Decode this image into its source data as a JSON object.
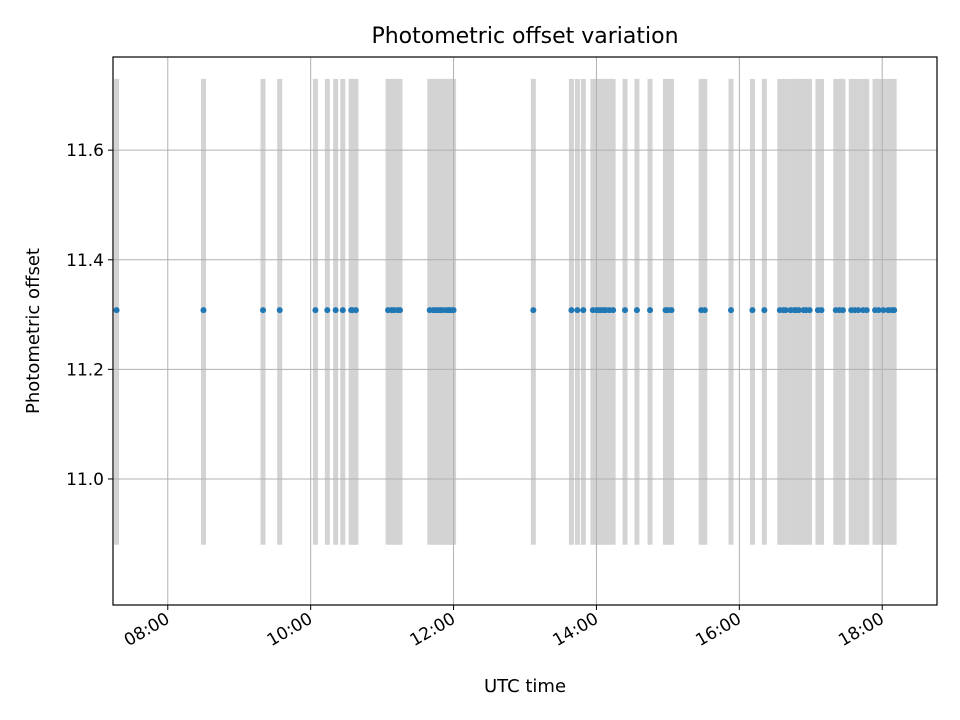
{
  "chart_data": {
    "type": "scatter",
    "title": "Photometric offset variation",
    "xlabel": "UTC time",
    "ylabel": "Photometric offset",
    "x_axis_type": "time",
    "xlim": [
      "07:14",
      "18:46"
    ],
    "ylim": [
      10.77,
      11.77
    ],
    "x_ticks": [
      "08:00",
      "10:00",
      "12:00",
      "14:00",
      "16:00",
      "18:00"
    ],
    "y_ticks": [
      11.0,
      11.2,
      11.4,
      11.6
    ],
    "y_tick_labels": [
      "11.0",
      "11.2",
      "11.4",
      "11.6"
    ],
    "grid": true,
    "marker_color": "#1f77b4",
    "band_color": "#d3d3d3",
    "band_range": [
      10.88,
      11.73
    ],
    "series": [
      {
        "x": [
          "07:17",
          "08:30",
          "09:20",
          "09:34",
          "10:04",
          "10:14",
          "10:21",
          "10:27",
          "10:34",
          "10:35",
          "10:38",
          "11:05",
          "11:08",
          "11:10",
          "11:13",
          "11:15",
          "11:40",
          "11:43",
          "11:45",
          "11:47",
          "11:49",
          "11:51",
          "11:54",
          "11:56",
          "11:58",
          "12:00",
          "13:07",
          "13:39",
          "13:44",
          "13:49",
          "13:57",
          "14:00",
          "14:02",
          "14:04",
          "14:06",
          "14:08",
          "14:11",
          "14:14",
          "14:24",
          "14:34",
          "14:45",
          "14:58",
          "15:00",
          "15:03",
          "15:28",
          "15:31",
          "15:53",
          "16:11",
          "16:21",
          "16:34",
          "16:37",
          "16:39",
          "16:43",
          "16:46",
          "16:48",
          "16:50",
          "16:54",
          "16:56",
          "16:59",
          "17:06",
          "17:09",
          "17:21",
          "17:24",
          "17:27",
          "17:34",
          "17:37",
          "17:40",
          "17:44",
          "17:47",
          "17:54",
          "17:57",
          "18:01",
          "18:05",
          "18:08",
          "18:10"
        ],
        "values": [
          11.308,
          11.308,
          11.308,
          11.308,
          11.308,
          11.308,
          11.308,
          11.308,
          11.308,
          11.308,
          11.308,
          11.308,
          11.308,
          11.308,
          11.308,
          11.308,
          11.308,
          11.308,
          11.308,
          11.308,
          11.308,
          11.308,
          11.308,
          11.308,
          11.308,
          11.308,
          11.308,
          11.308,
          11.308,
          11.308,
          11.308,
          11.308,
          11.308,
          11.308,
          11.308,
          11.308,
          11.308,
          11.308,
          11.308,
          11.308,
          11.308,
          11.308,
          11.308,
          11.308,
          11.308,
          11.308,
          11.308,
          11.308,
          11.308,
          11.308,
          11.308,
          11.308,
          11.308,
          11.308,
          11.308,
          11.308,
          11.308,
          11.308,
          11.308,
          11.308,
          11.308,
          11.308,
          11.308,
          11.308,
          11.308,
          11.308,
          11.308,
          11.308,
          11.308,
          11.308,
          11.308,
          11.308,
          11.308,
          11.308,
          11.308
        ]
      }
    ]
  }
}
